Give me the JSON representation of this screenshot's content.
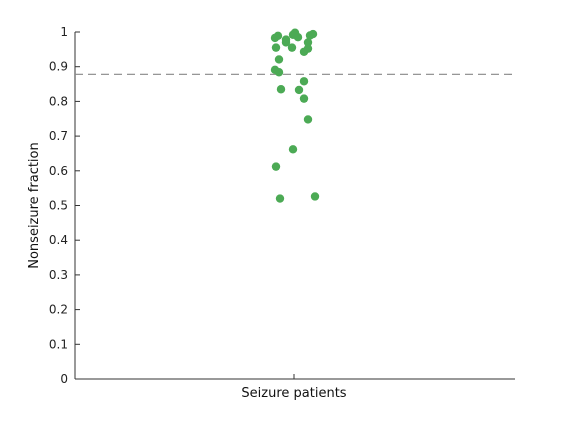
{
  "chart_data": {
    "type": "scatter",
    "title": "",
    "xlabel": "Seizure patients",
    "ylabel": "Nonseizure fraction",
    "ylim": [
      0,
      1
    ],
    "yticks": [
      0,
      0.1,
      0.2,
      0.3,
      0.4,
      0.5,
      0.6,
      0.7,
      0.8,
      0.9,
      1
    ],
    "ytick_labels": [
      "0",
      "0.1",
      "0.2",
      "0.3",
      "0.4",
      "0.5",
      "0.6",
      "0.7",
      "0.8",
      "0.9",
      "1"
    ],
    "xtick_labels": [
      "Seizure patients"
    ],
    "grid": false,
    "reference_line": {
      "y": 0.878,
      "style": "dashed",
      "color": "#888888"
    },
    "marker_color": "#4caa55",
    "series": [
      {
        "points": [
          {
            "jitter": -0.19,
            "y": 0.983
          },
          {
            "jitter": -0.16,
            "y": 0.989
          },
          {
            "jitter": -0.18,
            "y": 0.955
          },
          {
            "jitter": -0.15,
            "y": 0.921
          },
          {
            "jitter": -0.19,
            "y": 0.891
          },
          {
            "jitter": -0.15,
            "y": 0.884
          },
          {
            "jitter": -0.13,
            "y": 0.835
          },
          {
            "jitter": -0.18,
            "y": 0.612
          },
          {
            "jitter": -0.14,
            "y": 0.52
          },
          {
            "jitter": -0.08,
            "y": 0.978
          },
          {
            "jitter": -0.08,
            "y": 0.97
          },
          {
            "jitter": -0.02,
            "y": 0.955
          },
          {
            "jitter": -0.01,
            "y": 0.992
          },
          {
            "jitter": 0.01,
            "y": 0.998
          },
          {
            "jitter": 0.04,
            "y": 0.985
          },
          {
            "jitter": -0.01,
            "y": 0.662
          },
          {
            "jitter": 0.05,
            "y": 0.833
          },
          {
            "jitter": 0.1,
            "y": 0.943
          },
          {
            "jitter": 0.1,
            "y": 0.858
          },
          {
            "jitter": 0.1,
            "y": 0.808
          },
          {
            "jitter": 0.14,
            "y": 0.97
          },
          {
            "jitter": 0.14,
            "y": 0.952
          },
          {
            "jitter": 0.16,
            "y": 0.99
          },
          {
            "jitter": 0.19,
            "y": 0.994
          },
          {
            "jitter": 0.14,
            "y": 0.748
          },
          {
            "jitter": 0.21,
            "y": 0.526
          }
        ]
      }
    ]
  }
}
